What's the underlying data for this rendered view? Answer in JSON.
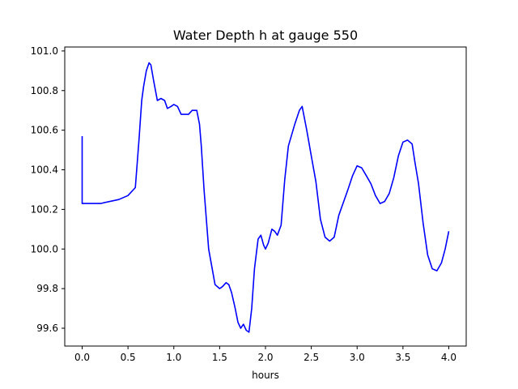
{
  "chart_data": {
    "type": "line",
    "title": "Water Depth h at gauge 550",
    "xlabel": "hours",
    "ylabel": "",
    "xlim": [
      -0.19,
      4.19
    ],
    "ylim": [
      99.51,
      101.02
    ],
    "grid": false,
    "legend": "none",
    "x_ticks": [
      0.0,
      0.5,
      1.0,
      1.5,
      2.0,
      2.5,
      3.0,
      3.5,
      4.0
    ],
    "x_tick_labels": [
      "0.0",
      "0.5",
      "1.0",
      "1.5",
      "2.0",
      "2.5",
      "3.0",
      "3.5",
      "4.0"
    ],
    "y_ticks": [
      99.6,
      99.8,
      100.0,
      100.2,
      100.4,
      100.6,
      100.8,
      101.0
    ],
    "y_tick_labels": [
      "99.6",
      "99.8",
      "100.0",
      "100.2",
      "100.4",
      "100.6",
      "100.8",
      "101.0"
    ],
    "series": [
      {
        "color": "#0000ff",
        "x": [
          0.0,
          0.0,
          0.2,
          0.4,
          0.5,
          0.58,
          0.62,
          0.65,
          0.67,
          0.7,
          0.73,
          0.75,
          0.78,
          0.82,
          0.86,
          0.9,
          0.93,
          0.97,
          1.0,
          1.04,
          1.08,
          1.12,
          1.16,
          1.2,
          1.25,
          1.28,
          1.3,
          1.33,
          1.38,
          1.45,
          1.5,
          1.53,
          1.57,
          1.6,
          1.63,
          1.67,
          1.7,
          1.73,
          1.76,
          1.79,
          1.82,
          1.85,
          1.88,
          1.92,
          1.95,
          1.98,
          2.0,
          2.03,
          2.07,
          2.1,
          2.13,
          2.17,
          2.21,
          2.25,
          2.32,
          2.37,
          2.4,
          2.45,
          2.5,
          2.55,
          2.6,
          2.65,
          2.7,
          2.75,
          2.8,
          2.9,
          2.95,
          3.0,
          3.05,
          3.1,
          3.15,
          3.2,
          3.25,
          3.3,
          3.35,
          3.4,
          3.45,
          3.5,
          3.55,
          3.6,
          3.63,
          3.67,
          3.72,
          3.77,
          3.82,
          3.87,
          3.92,
          3.96,
          4.0
        ],
        "y": [
          100.57,
          100.23,
          100.23,
          100.25,
          100.27,
          100.31,
          100.55,
          100.75,
          100.82,
          100.9,
          100.94,
          100.93,
          100.85,
          100.75,
          100.76,
          100.75,
          100.71,
          100.72,
          100.73,
          100.72,
          100.68,
          100.68,
          100.68,
          100.7,
          100.7,
          100.63,
          100.52,
          100.3,
          100.0,
          99.82,
          99.8,
          99.81,
          99.83,
          99.82,
          99.78,
          99.7,
          99.63,
          99.6,
          99.62,
          99.59,
          99.58,
          99.7,
          99.9,
          100.05,
          100.07,
          100.02,
          100.0,
          100.03,
          100.1,
          100.09,
          100.07,
          100.12,
          100.35,
          100.52,
          100.63,
          100.7,
          100.72,
          100.6,
          100.47,
          100.34,
          100.15,
          100.06,
          100.04,
          100.06,
          100.17,
          100.3,
          100.37,
          100.42,
          100.41,
          100.37,
          100.33,
          100.27,
          100.23,
          100.24,
          100.28,
          100.36,
          100.47,
          100.54,
          100.55,
          100.53,
          100.44,
          100.33,
          100.13,
          99.97,
          99.9,
          99.89,
          99.93,
          100.0,
          100.09
        ]
      }
    ]
  }
}
